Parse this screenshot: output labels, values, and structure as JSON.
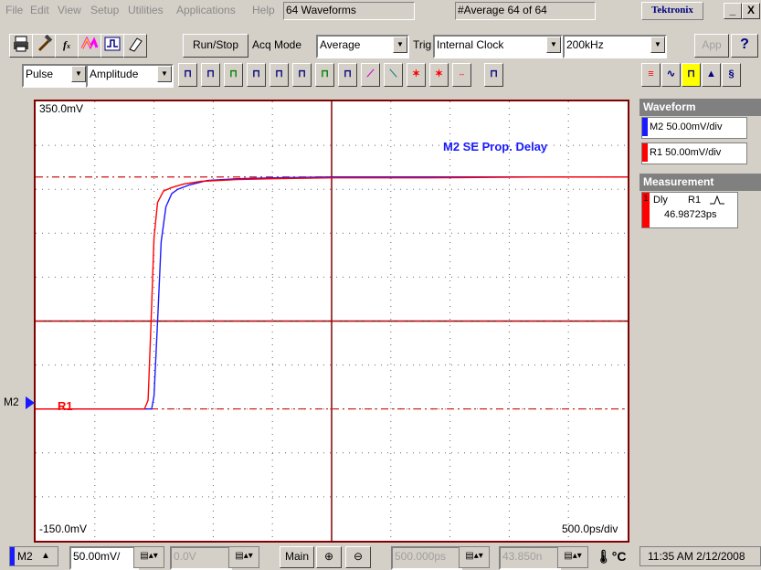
{
  "menu": {
    "items": [
      "File",
      "Edit",
      "View",
      "Setup",
      "Utilities",
      "Applications",
      "Help"
    ],
    "waveforms_box": "64 Waveforms",
    "average_box": "#Average  64 of 64",
    "brand": "Tektronix",
    "min_btn": "_",
    "close_btn": "X"
  },
  "toolbar1": {
    "run_stop": "Run/Stop",
    "acq_mode_label": "Acq Mode",
    "acq_mode_value": "Average",
    "trig_label": "Trig",
    "trig_value": "Internal Clock",
    "rate_value": "200kHz",
    "app_button": "App",
    "help_button": "?"
  },
  "toolbar2": {
    "measure_type": "Pulse",
    "measure_param": "Amplitude"
  },
  "graticule": {
    "top_label": "350.0mV",
    "bottom_label": "-150.0mV",
    "timebase_label": "500.0ps/div",
    "plot_title": "M2 SE Prop. Delay",
    "r1_label": "R1",
    "m2_marker": "M2"
  },
  "right_panel": {
    "waveform_header": "Waveform",
    "m2_chip": "M2 50.00mV/div",
    "r1_chip": "R1 50.00mV/div",
    "measurement_header": "Measurement",
    "meas_type": "Dly",
    "meas_source": "R1",
    "meas_value": "46.98723ps",
    "meas_index": "1"
  },
  "bottom": {
    "channel": "M2",
    "scale": "50.00mV/",
    "offset": "0.0V",
    "main_button": "Main",
    "horiz_pos": "500.000ps",
    "horiz_ref": "43.850n",
    "time": "11:35 AM 2/12/2008"
  },
  "colors": {
    "m2": "#1a1aff",
    "r1": "#ff0000",
    "graticule_border": "#800000",
    "grid_dash": "#d01010"
  },
  "chart_data": {
    "type": "line",
    "title": "M2 SE Prop. Delay",
    "xlabel": "",
    "ylabel": "",
    "x_unit": "ps",
    "y_unit": "mV",
    "xlim": [
      0,
      5000
    ],
    "ylim": [
      -150,
      350
    ],
    "series": [
      {
        "name": "M2",
        "x": [
          0,
          980,
          1000,
          1030,
          1060,
          1100,
          1150,
          1200,
          1300,
          1450,
          1700,
          2000,
          2500,
          3300,
          4300,
          5000
        ],
        "y": [
          0,
          0,
          15,
          100,
          190,
          230,
          245,
          250,
          255,
          260,
          262,
          263,
          264,
          264,
          264,
          264
        ]
      },
      {
        "name": "R1",
        "x": [
          0,
          920,
          950,
          975,
          1000,
          1030,
          1080,
          1150,
          1250,
          1400,
          1700,
          2000,
          2500,
          3300,
          4300,
          5000
        ],
        "y": [
          0,
          0,
          10,
          100,
          195,
          235,
          248,
          252,
          256,
          259,
          261,
          262,
          263,
          263,
          264,
          264
        ]
      }
    ],
    "grid": true
  }
}
